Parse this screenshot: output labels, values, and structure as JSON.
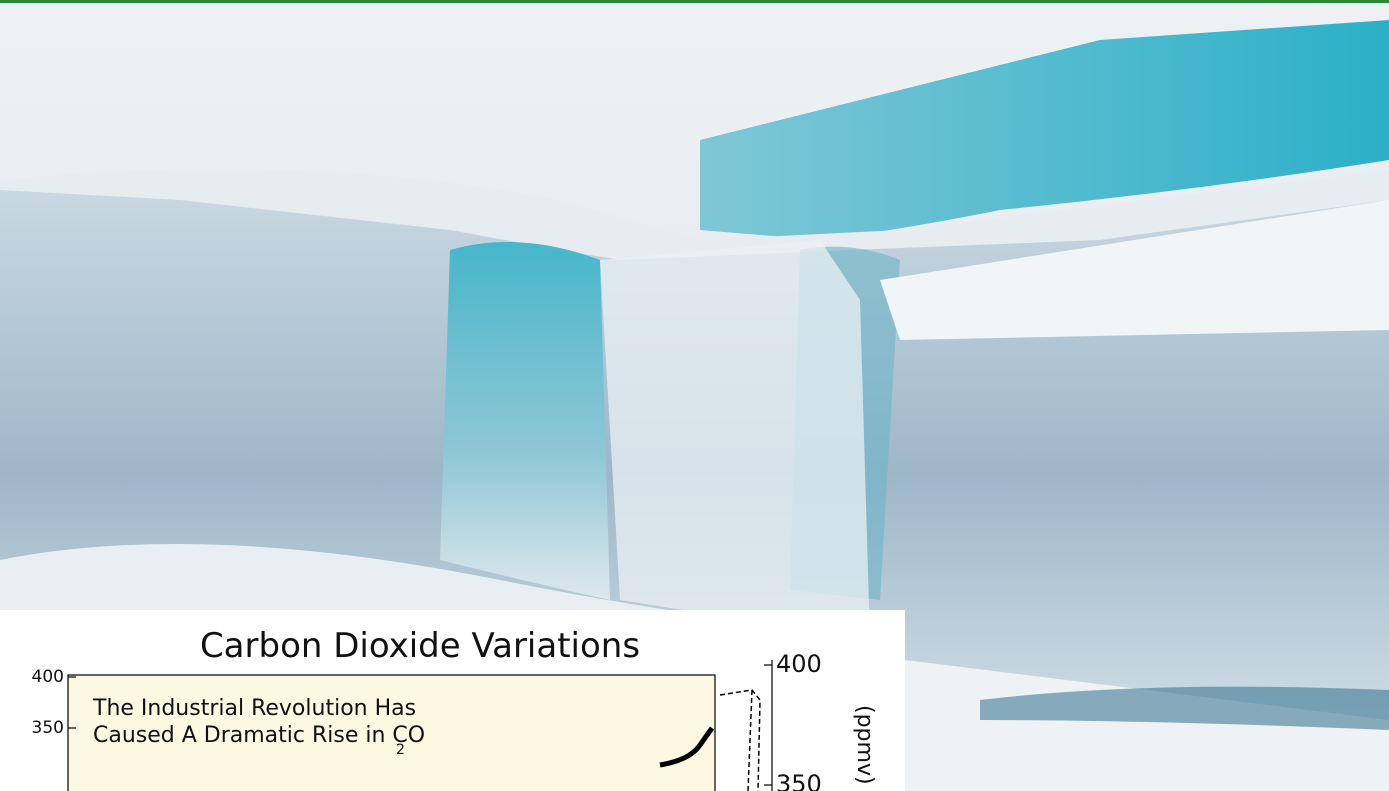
{
  "inset": {
    "title": "Carbon Dioxide Variations",
    "annotation_line1": "The Industrial Revolution Has",
    "annotation_line2": "Caused A Dramatic Rise in CO",
    "annotation_subscript": "2",
    "left_ticks": [
      400,
      350
    ],
    "right_ticks": [
      400,
      350
    ],
    "right_axis_label": "(ppmv)"
  }
}
